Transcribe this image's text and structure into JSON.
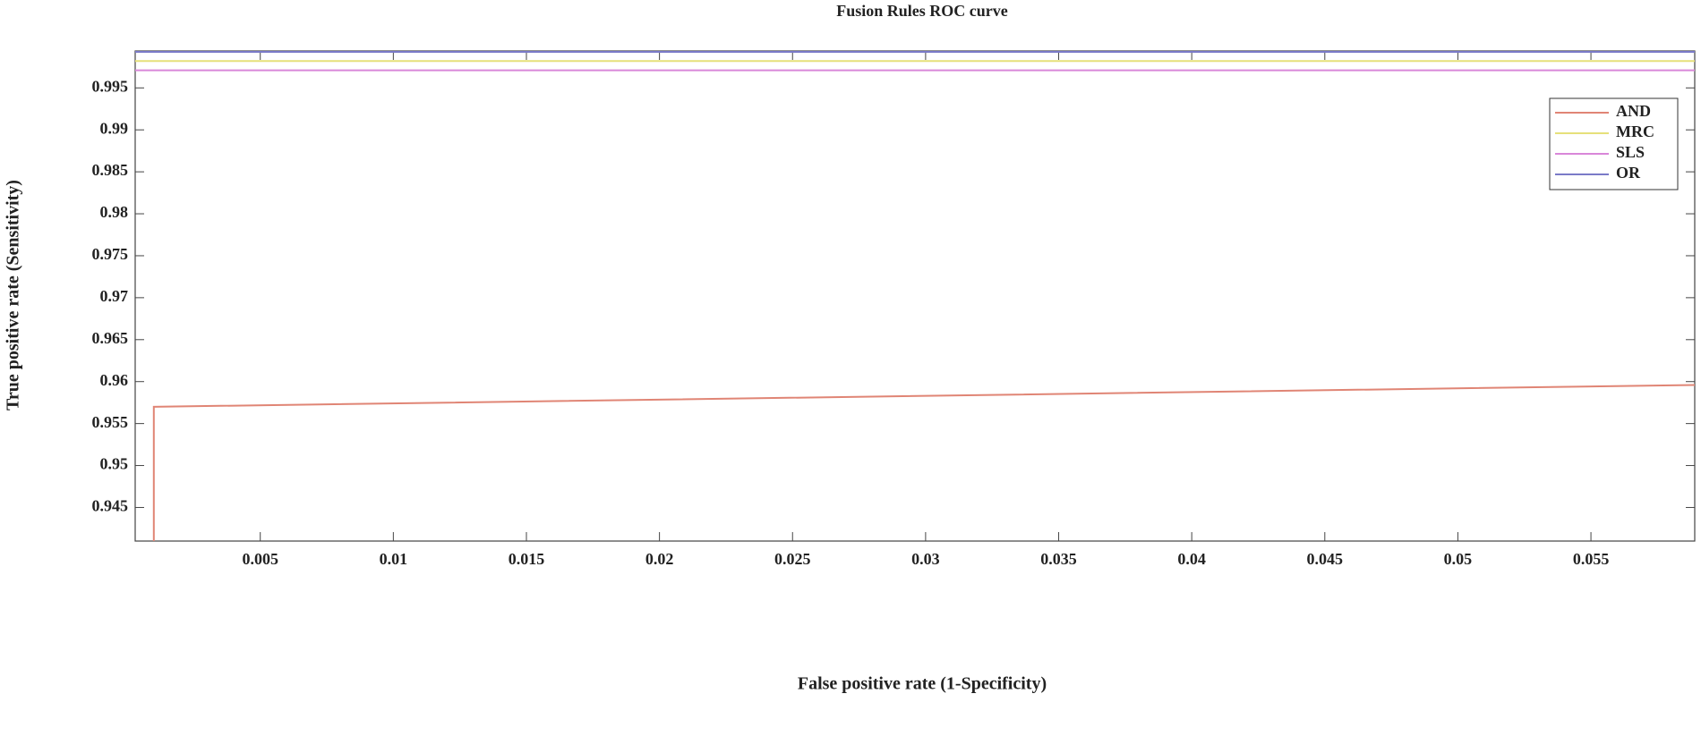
{
  "chart_data": {
    "type": "line",
    "title": "Fusion Rules ROC curve",
    "x_label": "False positive rate (1-Specificity)",
    "y_label": "True positive rate (Sensitivity)",
    "xlim": [
      0.0003,
      0.0589
    ],
    "ylim": [
      0.941,
      0.9994
    ],
    "xticks": [
      0.005,
      0.01,
      0.015,
      0.02,
      0.025,
      0.03,
      0.035,
      0.04,
      0.045,
      0.05,
      0.055
    ],
    "yticks": [
      0.945,
      0.95,
      0.955,
      0.96,
      0.965,
      0.97,
      0.975,
      0.98,
      0.985,
      0.99,
      0.995
    ],
    "grid": false,
    "legend": "upper right",
    "series": [
      {
        "name": "AND",
        "color": "#e08575",
        "x": [
          0.001,
          0.001,
          0.0589
        ],
        "values": [
          0.941,
          0.957,
          0.9596
        ]
      },
      {
        "name": "MRC",
        "color": "#e6e07a",
        "x": [
          0.0003,
          0.0589
        ],
        "values": [
          0.9982,
          0.9982
        ]
      },
      {
        "name": "SLS",
        "color": "#d987d9",
        "x": [
          0.0003,
          0.0589
        ],
        "values": [
          0.9971,
          0.9971
        ]
      },
      {
        "name": "OR",
        "color": "#7a7ac8",
        "x": [
          0.0003,
          0.0589
        ],
        "values": [
          0.9993,
          0.9993
        ]
      }
    ]
  }
}
